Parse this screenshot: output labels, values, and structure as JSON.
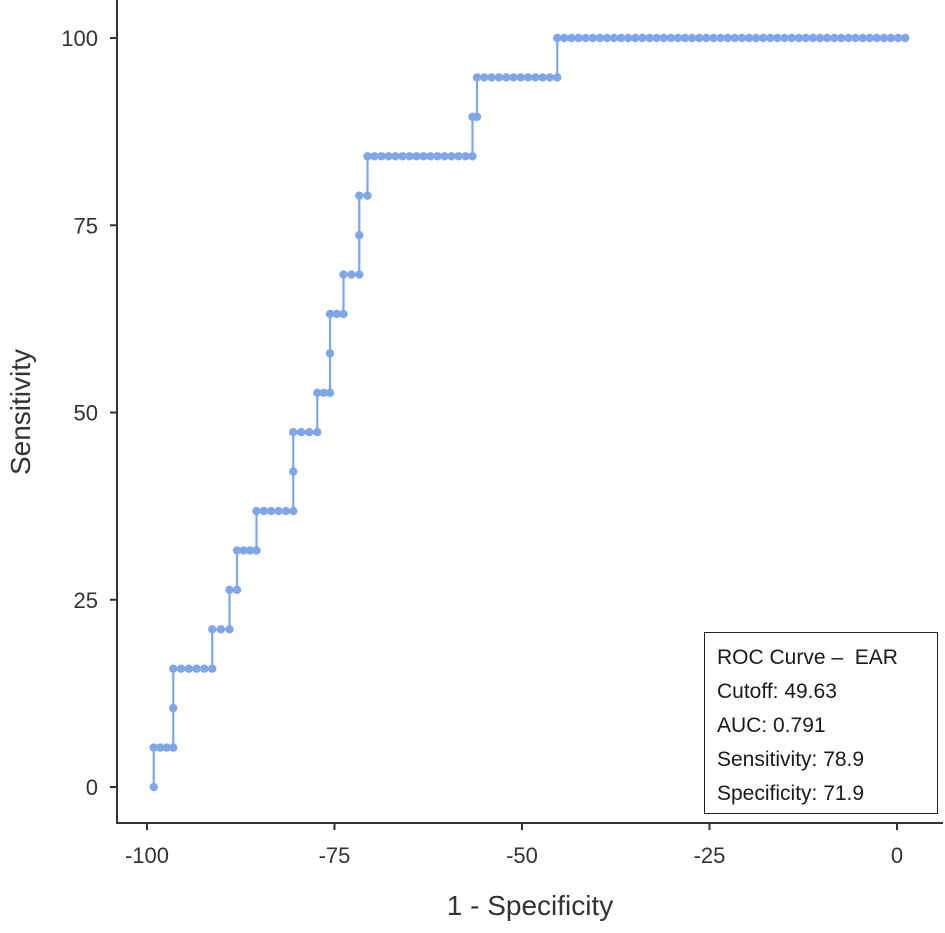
{
  "chart_data": {
    "type": "line",
    "title": "",
    "xlabel": "1 - Specificity",
    "ylabel": "Sensitivity",
    "xlim": [
      -100,
      1
    ],
    "ylim": [
      0,
      100
    ],
    "x_ticks": [
      -100,
      -75,
      -50,
      -25,
      0
    ],
    "x_tick_labels": [
      "-100",
      "-75",
      "-50",
      "-25",
      "0"
    ],
    "y_ticks": [
      0,
      25,
      50,
      75,
      100
    ],
    "y_tick_labels": [
      "0",
      "25",
      "50",
      "75",
      "100"
    ],
    "grid": false,
    "series_color": "#7ea6e8",
    "series": [
      {
        "name": "ROC Curve - EAR",
        "steps": [
          {
            "y": 0.0,
            "x_start": -99.1,
            "x_end": -99.1
          },
          {
            "y": 5.26,
            "x_start": -99.1,
            "x_end": -96.5
          },
          {
            "y": 10.53,
            "x_start": -96.5,
            "x_end": -96.5
          },
          {
            "y": 15.79,
            "x_start": -96.5,
            "x_end": -91.3
          },
          {
            "y": 21.05,
            "x_start": -91.3,
            "x_end": -89.0
          },
          {
            "y": 26.32,
            "x_start": -89.0,
            "x_end": -88.0
          },
          {
            "y": 31.58,
            "x_start": -88.0,
            "x_end": -85.4
          },
          {
            "y": 36.84,
            "x_start": -85.4,
            "x_end": -80.5
          },
          {
            "y": 42.11,
            "x_start": -80.5,
            "x_end": -80.5
          },
          {
            "y": 47.37,
            "x_start": -80.5,
            "x_end": -77.3
          },
          {
            "y": 52.63,
            "x_start": -77.3,
            "x_end": -75.6
          },
          {
            "y": 57.89,
            "x_start": -75.6,
            "x_end": -75.6
          },
          {
            "y": 63.16,
            "x_start": -75.6,
            "x_end": -73.8
          },
          {
            "y": 68.42,
            "x_start": -73.8,
            "x_end": -71.7
          },
          {
            "y": 73.68,
            "x_start": -71.7,
            "x_end": -71.7
          },
          {
            "y": 78.95,
            "x_start": -71.7,
            "x_end": -70.6
          },
          {
            "y": 84.21,
            "x_start": -70.6,
            "x_end": -56.6
          },
          {
            "y": 89.47,
            "x_start": -56.6,
            "x_end": -56.0
          },
          {
            "y": 94.74,
            "x_start": -56.0,
            "x_end": -45.3
          },
          {
            "y": 100.0,
            "x_start": -45.3,
            "x_end": 1.1
          }
        ]
      }
    ],
    "annotation": {
      "lines": [
        "ROC Curve –  EAR",
        "Cutoff: 49.63",
        "AUC: 0.791",
        "Sensitivity: 78.9",
        "Specificity: 71.9"
      ],
      "placement": "bottom-right"
    },
    "summary": {
      "curve": "EAR",
      "cutoff": 49.63,
      "auc": 0.791,
      "sensitivity": 78.9,
      "specificity": 71.9
    }
  }
}
